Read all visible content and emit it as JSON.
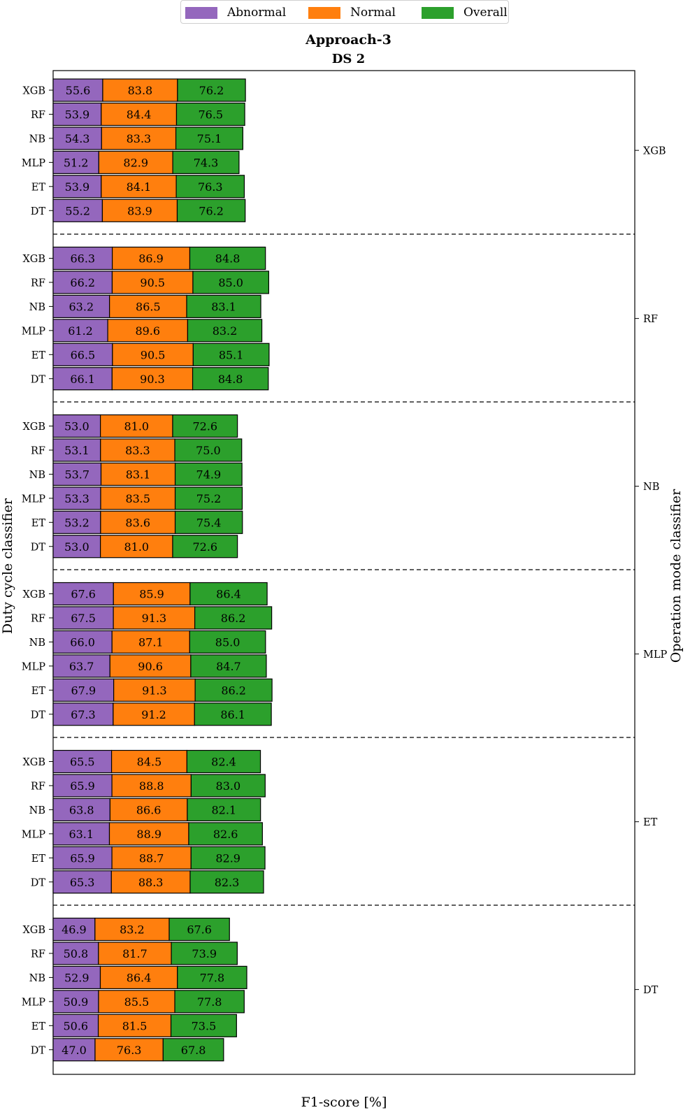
{
  "chart_data": {
    "type": "bar",
    "orientation": "horizontal-stacked",
    "title": "Approach-3",
    "subtitle": "DS 2",
    "xlabel": "F1-score [%]",
    "ylabel": "Duty cycle classifier",
    "right_label": "Operation mode classifier",
    "legend": [
      {
        "name": "Abnormal",
        "color": "#9467bd"
      },
      {
        "name": "Normal",
        "color": "#ff7f0e"
      },
      {
        "name": "Overall",
        "color": "#2ca02c"
      }
    ],
    "legend_position": "top-center",
    "xticks_visible": false,
    "grid": false,
    "groups": [
      {
        "name": "XGB",
        "rows": [
          {
            "label": "XGB",
            "values": [
              55.6,
              83.8,
              76.2
            ]
          },
          {
            "label": "RF",
            "values": [
              53.9,
              84.4,
              76.5
            ]
          },
          {
            "label": "NB",
            "values": [
              54.3,
              83.3,
              75.1
            ]
          },
          {
            "label": "MLP",
            "values": [
              51.2,
              82.9,
              74.3
            ]
          },
          {
            "label": "ET",
            "values": [
              53.9,
              84.1,
              76.3
            ]
          },
          {
            "label": "DT",
            "values": [
              55.2,
              83.9,
              76.2
            ]
          }
        ]
      },
      {
        "name": "RF",
        "rows": [
          {
            "label": "XGB",
            "values": [
              66.3,
              86.9,
              84.8
            ]
          },
          {
            "label": "RF",
            "values": [
              66.2,
              90.5,
              85.0
            ]
          },
          {
            "label": "NB",
            "values": [
              63.2,
              86.5,
              83.1
            ]
          },
          {
            "label": "MLP",
            "values": [
              61.2,
              89.6,
              83.2
            ]
          },
          {
            "label": "ET",
            "values": [
              66.5,
              90.5,
              85.1
            ]
          },
          {
            "label": "DT",
            "values": [
              66.1,
              90.3,
              84.8
            ]
          }
        ]
      },
      {
        "name": "NB",
        "rows": [
          {
            "label": "XGB",
            "values": [
              53.0,
              81.0,
              72.6
            ]
          },
          {
            "label": "RF",
            "values": [
              53.1,
              83.3,
              75.0
            ]
          },
          {
            "label": "NB",
            "values": [
              53.7,
              83.1,
              74.9
            ]
          },
          {
            "label": "MLP",
            "values": [
              53.3,
              83.5,
              75.2
            ]
          },
          {
            "label": "ET",
            "values": [
              53.2,
              83.6,
              75.4
            ]
          },
          {
            "label": "DT",
            "values": [
              53.0,
              81.0,
              72.6
            ]
          }
        ]
      },
      {
        "name": "MLP",
        "rows": [
          {
            "label": "XGB",
            "values": [
              67.6,
              85.9,
              86.4
            ]
          },
          {
            "label": "RF",
            "values": [
              67.5,
              91.3,
              86.2
            ]
          },
          {
            "label": "NB",
            "values": [
              66.0,
              87.1,
              85.0
            ]
          },
          {
            "label": "MLP",
            "values": [
              63.7,
              90.6,
              84.7
            ]
          },
          {
            "label": "ET",
            "values": [
              67.9,
              91.3,
              86.2
            ]
          },
          {
            "label": "DT",
            "values": [
              67.3,
              91.2,
              86.1
            ]
          }
        ]
      },
      {
        "name": "ET",
        "rows": [
          {
            "label": "XGB",
            "values": [
              65.5,
              84.5,
              82.4
            ]
          },
          {
            "label": "RF",
            "values": [
              65.9,
              88.8,
              83.0
            ]
          },
          {
            "label": "NB",
            "values": [
              63.8,
              86.6,
              82.1
            ]
          },
          {
            "label": "MLP",
            "values": [
              63.1,
              88.9,
              82.6
            ]
          },
          {
            "label": "ET",
            "values": [
              65.9,
              88.7,
              82.9
            ]
          },
          {
            "label": "DT",
            "values": [
              65.3,
              88.3,
              82.3
            ]
          }
        ]
      },
      {
        "name": "DT",
        "rows": [
          {
            "label": "XGB",
            "values": [
              46.9,
              83.2,
              67.6
            ]
          },
          {
            "label": "RF",
            "values": [
              50.8,
              81.7,
              73.9
            ]
          },
          {
            "label": "NB",
            "values": [
              52.9,
              86.4,
              77.8
            ]
          },
          {
            "label": "MLP",
            "values": [
              50.9,
              85.5,
              77.8
            ]
          },
          {
            "label": "ET",
            "values": [
              50.6,
              81.5,
              73.5
            ]
          },
          {
            "label": "DT",
            "values": [
              47.0,
              76.3,
              67.8
            ]
          }
        ]
      }
    ]
  }
}
